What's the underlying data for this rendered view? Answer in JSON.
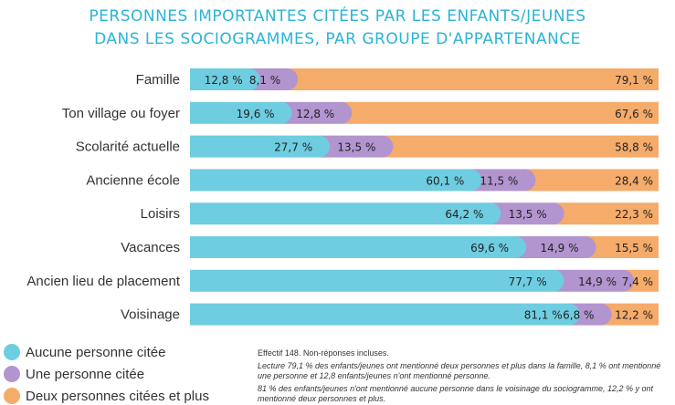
{
  "chart_data": {
    "type": "bar",
    "orientation": "horizontal",
    "stacked": true,
    "title": "Personnes importantes citées par les enfants/jeunes",
    "subtitle": "dans les sociogrammes, par groupe d'appartenance",
    "categories": [
      "Famille",
      "Ton village ou foyer",
      "Scolarité actuelle",
      "Ancienne école",
      "Loisirs",
      "Vacances",
      "Ancien lieu de placement",
      "Voisinage"
    ],
    "series": [
      {
        "name": "Aucune personne citée",
        "color": "#6ecde0",
        "values": [
          12.8,
          19.6,
          27.7,
          60.1,
          64.2,
          69.6,
          77.7,
          81.1
        ],
        "labels": [
          "12,8 %",
          "19,6 %",
          "27,7 %",
          "60,1 %",
          "64,2 %",
          "69,6 %",
          "77,7 %",
          "81,1 %"
        ]
      },
      {
        "name": "Une personne citée",
        "color": "#b294cf",
        "values": [
          8.1,
          12.8,
          13.5,
          11.5,
          13.5,
          14.9,
          14.9,
          6.8
        ],
        "labels": [
          "8,1 %",
          "12,8 %",
          "13,5 %",
          "11,5 %",
          "13,5 %",
          "14,9 %",
          "14,9 %",
          "6,8 %"
        ]
      },
      {
        "name": "Deux personnes citées et plus",
        "color": "#f5ab6a",
        "values": [
          79.1,
          67.6,
          58.8,
          28.4,
          22.3,
          15.5,
          7.4,
          12.2
        ],
        "labels": [
          "79,1 %",
          "67,6 %",
          "58,8 %",
          "28,4 %",
          "22,3 %",
          "15,5 %",
          "7,4 %",
          "12,2 %"
        ]
      }
    ],
    "xlim": [
      0,
      100
    ]
  },
  "notes": {
    "effectif": "Effectif 148. Non-réponses incluses.",
    "lecture1": "Lecture 79,1 % des enfants/jeunes ont mentionné deux personnes et plus dans la famille, 8,1 % ont mentionné une personne et 12,8 enfants/jeunes n'ont mentionné personne.",
    "lecture2": "81 % des enfants/jeunes n'ont mentionné aucune personne dans le voisinage du sociogramme, 12,2 % y ont mentionné deux personnes et plus."
  }
}
